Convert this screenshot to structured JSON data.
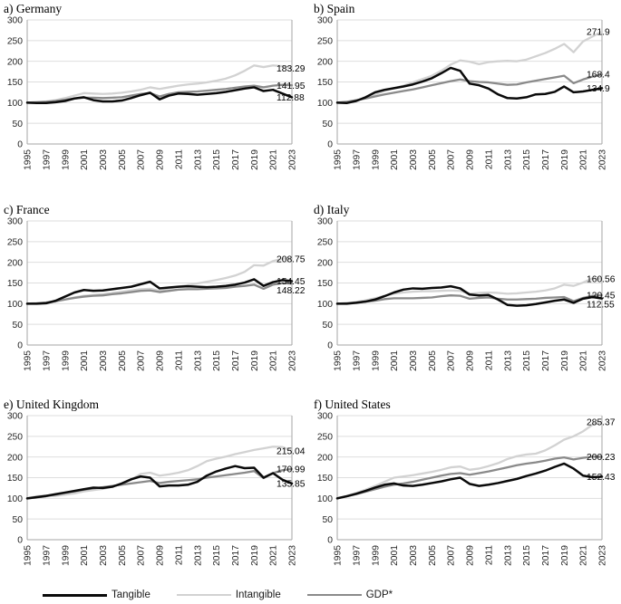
{
  "colors": {
    "tangible": "#0a0a0a",
    "intangible": "#d2d2d2",
    "gdp": "#8a8a8a",
    "grid": "#dedede",
    "frame": "#a6a6a6",
    "tick_text": "#262626"
  },
  "legend": {
    "items": [
      {
        "label": "Tangible",
        "color": "#0a0a0a"
      },
      {
        "label": "Intangible",
        "color": "#d2d2d2"
      },
      {
        "label": "GDP*",
        "color": "#8a8a8a"
      }
    ]
  },
  "chart_data": [
    {
      "type": "line",
      "title": "a) Germany",
      "ylim": [
        0,
        300
      ],
      "yticks": [
        0,
        50,
        100,
        150,
        200,
        250,
        300
      ],
      "xticks": [
        "1995",
        "1997",
        "1999",
        "2001",
        "2003",
        "2005",
        "2007",
        "2009",
        "2011",
        "2013",
        "2015",
        "2017",
        "2019",
        "2021",
        "2023"
      ],
      "x": [
        1995,
        1996,
        1997,
        1998,
        1999,
        2000,
        2001,
        2002,
        2003,
        2004,
        2005,
        2006,
        2007,
        2008,
        2009,
        2010,
        2011,
        2012,
        2013,
        2014,
        2015,
        2016,
        2017,
        2018,
        2019,
        2020,
        2021,
        2022,
        2023
      ],
      "series": [
        {
          "name": "Tangible",
          "color": "#0a0a0a",
          "end_label": "112.88",
          "values": [
            100,
            99,
            99,
            101,
            104,
            110,
            113,
            106,
            103,
            103,
            105,
            111,
            118,
            124,
            108,
            117,
            122,
            121,
            119,
            121,
            123,
            126,
            130,
            134,
            137,
            128,
            131,
            122,
            112.88
          ]
        },
        {
          "name": "Intangible",
          "color": "#d2d2d2",
          "end_label": "183.29",
          "values": [
            100,
            101,
            103,
            106,
            111,
            117,
            123,
            122,
            121,
            122,
            124,
            127,
            131,
            137,
            133,
            137,
            141,
            144,
            146,
            149,
            153,
            158,
            166,
            177,
            190,
            186,
            190,
            188,
            183.29
          ]
        },
        {
          "name": "GDP*",
          "color": "#8a8a8a",
          "end_label": "141.95",
          "values": [
            100,
            101,
            102,
            104,
            107,
            110,
            112,
            112,
            111,
            112,
            113,
            117,
            121,
            123,
            115,
            121,
            125,
            126,
            127,
            129,
            131,
            133,
            136,
            139,
            141,
            137,
            141,
            143,
            141.95
          ]
        }
      ]
    },
    {
      "type": "line",
      "title": "b) Spain",
      "ylim": [
        0,
        300
      ],
      "yticks": [
        0,
        50,
        100,
        150,
        200,
        250,
        300
      ],
      "xticks": [
        "1995",
        "1997",
        "1999",
        "2001",
        "2003",
        "2005",
        "2007",
        "2009",
        "2011",
        "2013",
        "2015",
        "2017",
        "2019",
        "2021",
        "2023"
      ],
      "x": [
        1995,
        1996,
        1997,
        1998,
        1999,
        2000,
        2001,
        2002,
        2003,
        2004,
        2005,
        2006,
        2007,
        2008,
        2009,
        2010,
        2011,
        2012,
        2013,
        2014,
        2015,
        2016,
        2017,
        2018,
        2019,
        2020,
        2021,
        2022,
        2023
      ],
      "series": [
        {
          "name": "Tangible",
          "color": "#0a0a0a",
          "end_label": "134.9",
          "values": [
            100,
            99,
            104,
            113,
            125,
            131,
            135,
            139,
            144,
            151,
            159,
            171,
            184,
            177,
            146,
            142,
            134,
            120,
            111,
            110,
            113,
            120,
            121,
            126,
            139,
            125,
            127,
            131,
            134.9
          ]
        },
        {
          "name": "Intangible",
          "color": "#d2d2d2",
          "end_label": "271.9",
          "values": [
            100,
            101,
            105,
            112,
            120,
            128,
            135,
            141,
            149,
            157,
            165,
            177,
            192,
            202,
            199,
            193,
            198,
            200,
            201,
            200,
            204,
            212,
            220,
            230,
            242,
            222,
            248,
            260,
            271.9
          ]
        },
        {
          "name": "GDP*",
          "color": "#8a8a8a",
          "end_label": "168.4",
          "values": [
            100,
            102,
            106,
            110,
            115,
            120,
            124,
            128,
            132,
            137,
            142,
            147,
            152,
            156,
            152,
            150,
            149,
            146,
            143,
            144,
            149,
            153,
            157,
            161,
            165,
            147,
            156,
            163,
            168.4
          ]
        }
      ]
    },
    {
      "type": "line",
      "title": "c) France",
      "ylim": [
        0,
        300
      ],
      "yticks": [
        0,
        50,
        100,
        150,
        200,
        250,
        300
      ],
      "xticks": [
        "1995",
        "1997",
        "1999",
        "2001",
        "2003",
        "2005",
        "2007",
        "2009",
        "2011",
        "2013",
        "2015",
        "2017",
        "2019",
        "2021",
        "2023"
      ],
      "x": [
        1995,
        1996,
        1997,
        1998,
        1999,
        2000,
        2001,
        2002,
        2003,
        2004,
        2005,
        2006,
        2007,
        2008,
        2009,
        2010,
        2011,
        2012,
        2013,
        2014,
        2015,
        2016,
        2017,
        2018,
        2019,
        2020,
        2021,
        2022,
        2023
      ],
      "series": [
        {
          "name": "Tangible",
          "color": "#0a0a0a",
          "end_label": "154.45",
          "values": [
            100,
            100,
            101,
            107,
            117,
            127,
            133,
            131,
            132,
            135,
            138,
            141,
            147,
            153,
            137,
            139,
            141,
            142,
            141,
            140,
            141,
            143,
            146,
            151,
            159,
            143,
            152,
            157,
            154.45
          ]
        },
        {
          "name": "Intangible",
          "color": "#d2d2d2",
          "end_label": "208.75",
          "values": [
            100,
            100,
            102,
            105,
            110,
            115,
            119,
            121,
            123,
            126,
            129,
            132,
            135,
            136,
            131,
            137,
            141,
            145,
            149,
            153,
            157,
            162,
            168,
            177,
            193,
            192,
            203,
            209,
            208.75
          ]
        },
        {
          "name": "GDP*",
          "color": "#8a8a8a",
          "end_label": "148.22",
          "values": [
            100,
            101,
            103,
            106,
            110,
            114,
            117,
            119,
            120,
            123,
            125,
            128,
            131,
            132,
            128,
            131,
            134,
            135,
            135,
            136,
            137,
            138,
            141,
            143,
            146,
            136,
            146,
            150,
            148.22
          ]
        }
      ]
    },
    {
      "type": "line",
      "title": "d) Italy",
      "ylim": [
        0,
        300
      ],
      "yticks": [
        0,
        50,
        100,
        150,
        200,
        250,
        300
      ],
      "xticks": [
        "1995",
        "1997",
        "1999",
        "2001",
        "2003",
        "2005",
        "2007",
        "2009",
        "2011",
        "2013",
        "2015",
        "2017",
        "2019",
        "2021",
        "2023"
      ],
      "x": [
        1995,
        1996,
        1997,
        1998,
        1999,
        2000,
        2001,
        2002,
        2003,
        2004,
        2005,
        2006,
        2007,
        2008,
        2009,
        2010,
        2011,
        2012,
        2013,
        2014,
        2015,
        2016,
        2017,
        2018,
        2019,
        2020,
        2021,
        2022,
        2023
      ],
      "series": [
        {
          "name": "Tangible",
          "color": "#0a0a0a",
          "end_label": "112.55",
          "values": [
            100,
            100,
            102,
            105,
            110,
            118,
            127,
            134,
            137,
            136,
            138,
            139,
            142,
            137,
            122,
            120,
            121,
            110,
            97,
            95,
            96,
            99,
            103,
            107,
            110,
            102,
            112,
            116,
            112.55
          ]
        },
        {
          "name": "Intangible",
          "color": "#d2d2d2",
          "end_label": "160.56",
          "values": [
            100,
            101,
            104,
            108,
            113,
            119,
            124,
            127,
            129,
            130,
            130,
            131,
            132,
            131,
            124,
            126,
            127,
            126,
            124,
            125,
            127,
            129,
            132,
            137,
            146,
            143,
            151,
            161,
            160.56
          ]
        },
        {
          "name": "GDP*",
          "color": "#8a8a8a",
          "end_label": "120.45",
          "values": [
            100,
            101,
            103,
            105,
            107,
            111,
            113,
            113,
            113,
            114,
            115,
            118,
            120,
            119,
            112,
            114,
            115,
            112,
            110,
            110,
            111,
            112,
            114,
            115,
            116,
            106,
            114,
            119,
            120.45
          ]
        }
      ]
    },
    {
      "type": "line",
      "title": "e) United Kingdom",
      "ylim": [
        0,
        300
      ],
      "yticks": [
        0,
        50,
        100,
        150,
        200,
        250,
        300
      ],
      "xticks": [
        "1995",
        "1997",
        "1999",
        "2001",
        "2003",
        "2005",
        "2007",
        "2009",
        "2011",
        "2013",
        "2015",
        "2017",
        "2019",
        "2021",
        "2023"
      ],
      "x": [
        1995,
        1996,
        1997,
        1998,
        1999,
        2000,
        2001,
        2002,
        2003,
        2004,
        2005,
        2006,
        2007,
        2008,
        2009,
        2010,
        2011,
        2012,
        2013,
        2014,
        2015,
        2016,
        2017,
        2018,
        2019,
        2020,
        2021,
        2022,
        2023
      ],
      "series": [
        {
          "name": "Tangible",
          "color": "#0a0a0a",
          "end_label": "135.85",
          "values": [
            100,
            103,
            106,
            110,
            114,
            118,
            122,
            126,
            125,
            128,
            136,
            146,
            153,
            150,
            129,
            131,
            131,
            133,
            140,
            155,
            165,
            172,
            178,
            173,
            174,
            150,
            161,
            145,
            135.85
          ]
        },
        {
          "name": "Intangible",
          "color": "#d2d2d2",
          "end_label": "215.04",
          "values": [
            100,
            105,
            107,
            106,
            109,
            112,
            117,
            120,
            123,
            128,
            135,
            145,
            159,
            162,
            155,
            158,
            162,
            168,
            178,
            190,
            196,
            201,
            207,
            212,
            217,
            221,
            225,
            224,
            215.04
          ]
        },
        {
          "name": "GDP*",
          "color": "#8a8a8a",
          "end_label": "170.99",
          "values": [
            100,
            102,
            105,
            109,
            113,
            117,
            121,
            124,
            127,
            130,
            133,
            136,
            139,
            142,
            137,
            140,
            142,
            144,
            146,
            150,
            153,
            156,
            159,
            162,
            166,
            149,
            161,
            168,
            170.99
          ]
        }
      ]
    },
    {
      "type": "line",
      "title": "f) United States",
      "ylim": [
        0,
        300
      ],
      "yticks": [
        0,
        50,
        100,
        150,
        200,
        250,
        300
      ],
      "xticks": [
        "1995",
        "1997",
        "1999",
        "2001",
        "2003",
        "2005",
        "2007",
        "2009",
        "2011",
        "2013",
        "2015",
        "2017",
        "2019",
        "2021",
        "2023"
      ],
      "x": [
        1995,
        1996,
        1997,
        1998,
        1999,
        2000,
        2001,
        2002,
        2003,
        2004,
        2005,
        2006,
        2007,
        2008,
        2009,
        2010,
        2011,
        2012,
        2013,
        2014,
        2015,
        2016,
        2017,
        2018,
        2019,
        2020,
        2021,
        2022,
        2023
      ],
      "series": [
        {
          "name": "Tangible",
          "color": "#0a0a0a",
          "end_label": "152.43",
          "values": [
            100,
            105,
            111,
            118,
            126,
            133,
            136,
            131,
            130,
            133,
            137,
            141,
            146,
            150,
            135,
            130,
            133,
            137,
            142,
            147,
            154,
            160,
            167,
            176,
            184,
            172,
            155,
            151,
            152.43
          ]
        },
        {
          "name": "Intangible",
          "color": "#d2d2d2",
          "end_label": "285.37",
          "values": [
            100,
            106,
            113,
            121,
            130,
            140,
            150,
            153,
            156,
            160,
            164,
            169,
            175,
            177,
            169,
            172,
            178,
            185,
            195,
            202,
            206,
            208,
            216,
            228,
            242,
            250,
            262,
            278,
            285.37
          ]
        },
        {
          "name": "GDP*",
          "color": "#8a8a8a",
          "end_label": "200.23",
          "values": [
            100,
            105,
            110,
            116,
            122,
            128,
            133,
            136,
            140,
            145,
            150,
            155,
            159,
            161,
            157,
            161,
            165,
            170,
            175,
            180,
            184,
            187,
            191,
            196,
            199,
            194,
            198,
            201,
            200.23
          ]
        }
      ]
    }
  ]
}
